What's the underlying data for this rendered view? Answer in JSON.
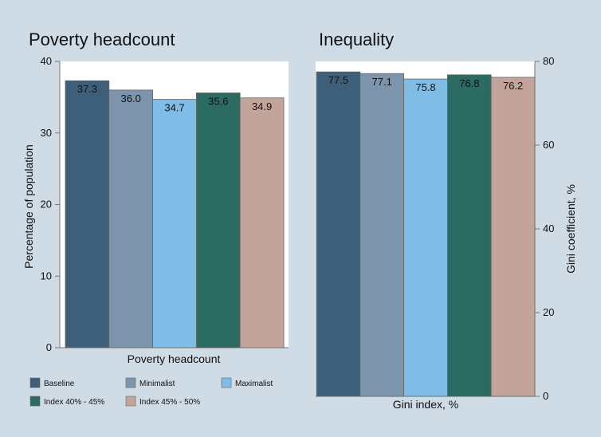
{
  "chart_data": [
    {
      "type": "bar",
      "title": "Poverty headcount",
      "xlabel": "Poverty headcount",
      "ylabel": "Percentage of population",
      "ylim": [
        0,
        40
      ],
      "yticks": [
        0,
        10,
        20,
        30,
        40
      ],
      "y_axis_side": "left",
      "categories": [
        "Baseline",
        "Minimalist",
        "Maximalist",
        "Index 40% - 45%",
        "Index 45% - 50%"
      ],
      "values": [
        37.3,
        36.0,
        34.7,
        35.6,
        34.9
      ],
      "value_labels": [
        "37.3",
        "36.0",
        "34.7",
        "35.6",
        "34.9"
      ],
      "colors": [
        "#3e5f7a",
        "#7c95ad",
        "#7fbde6",
        "#2b6b62",
        "#c2a49b"
      ],
      "grid": false,
      "legend": {
        "position": "bottom",
        "items": [
          "Baseline",
          "Minimalist",
          "Maximalist",
          "Index 40% - 45%",
          "Index 45% - 50%"
        ]
      }
    },
    {
      "type": "bar",
      "title": "Inequality",
      "xlabel": "Gini index, %",
      "ylabel": "Gini coefficient, %",
      "ylim": [
        0,
        80
      ],
      "yticks": [
        0,
        20,
        40,
        60,
        80
      ],
      "y_axis_side": "right",
      "categories": [
        "Baseline",
        "Minimalist",
        "Maximalist",
        "Index 40% - 45%",
        "Index 45% - 50%"
      ],
      "values": [
        77.5,
        77.1,
        75.8,
        76.8,
        76.2
      ],
      "value_labels": [
        "77.5",
        "77.1",
        "75.8",
        "76.8",
        "76.2"
      ],
      "colors": [
        "#3e5f7a",
        "#7c95ad",
        "#7fbde6",
        "#2b6b62",
        "#c2a49b"
      ],
      "grid": false
    }
  ],
  "style": {
    "background": "#cfdbe5",
    "plot_background": "#ffffff",
    "axis_color": "#777777",
    "text_color": "#111111",
    "bar_outline": "#666666"
  }
}
